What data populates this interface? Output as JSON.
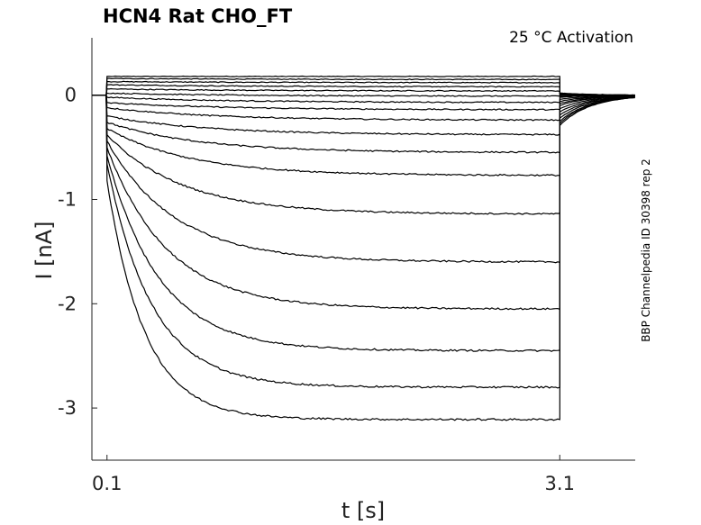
{
  "chart_data": {
    "type": "line",
    "title": "HCN4  Rat  CHO_FT",
    "annotation": "25 °C  Activation",
    "side_label": "BBP Channelpedia ID 30398 rep 2",
    "xlabel": "t [s]",
    "ylabel": "I [nA]",
    "xlim": [
      0.0,
      3.6
    ],
    "ylim": [
      -3.5,
      0.55
    ],
    "xticks": [
      0.1,
      3.1
    ],
    "xtick_labels": [
      "0.1",
      "3.1"
    ],
    "yticks": [
      0,
      -1,
      -2,
      -3
    ],
    "ytick_labels": [
      "0",
      "-1",
      "-2",
      "-3"
    ],
    "grid": false,
    "legend": "none",
    "trace_color": "#000000",
    "pulse_start": 0.1,
    "pulse_end": 3.1,
    "traces": [
      {
        "i0": 0.18,
        "iss": 0.18,
        "tail": 0.02
      },
      {
        "i0": 0.16,
        "iss": 0.15,
        "tail": 0.02
      },
      {
        "i0": 0.13,
        "iss": 0.12,
        "tail": 0.01
      },
      {
        "i0": 0.1,
        "iss": 0.08,
        "tail": 0.0
      },
      {
        "i0": 0.06,
        "iss": 0.04,
        "tail": 0.0
      },
      {
        "i0": 0.02,
        "iss": -0.01,
        "tail": -0.01
      },
      {
        "i0": -0.02,
        "iss": -0.07,
        "tail": -0.02
      },
      {
        "i0": -0.07,
        "iss": -0.14,
        "tail": -0.04
      },
      {
        "i0": -0.12,
        "iss": -0.24,
        "tail": -0.06
      },
      {
        "i0": -0.2,
        "iss": -0.38,
        "tail": -0.08
      },
      {
        "i0": -0.26,
        "iss": -0.55,
        "tail": -0.1
      },
      {
        "i0": -0.32,
        "iss": -0.77,
        "tail": -0.13
      },
      {
        "i0": -0.38,
        "iss": -1.14,
        "tail": -0.16
      },
      {
        "i0": -0.44,
        "iss": -1.6,
        "tail": -0.19
      },
      {
        "i0": -0.5,
        "iss": -2.05,
        "tail": -0.22
      },
      {
        "i0": -0.58,
        "iss": -2.45,
        "tail": -0.25
      },
      {
        "i0": -0.66,
        "iss": -2.8,
        "tail": -0.27
      },
      {
        "i0": -0.82,
        "iss": -3.11,
        "tail": -0.29
      }
    ]
  }
}
